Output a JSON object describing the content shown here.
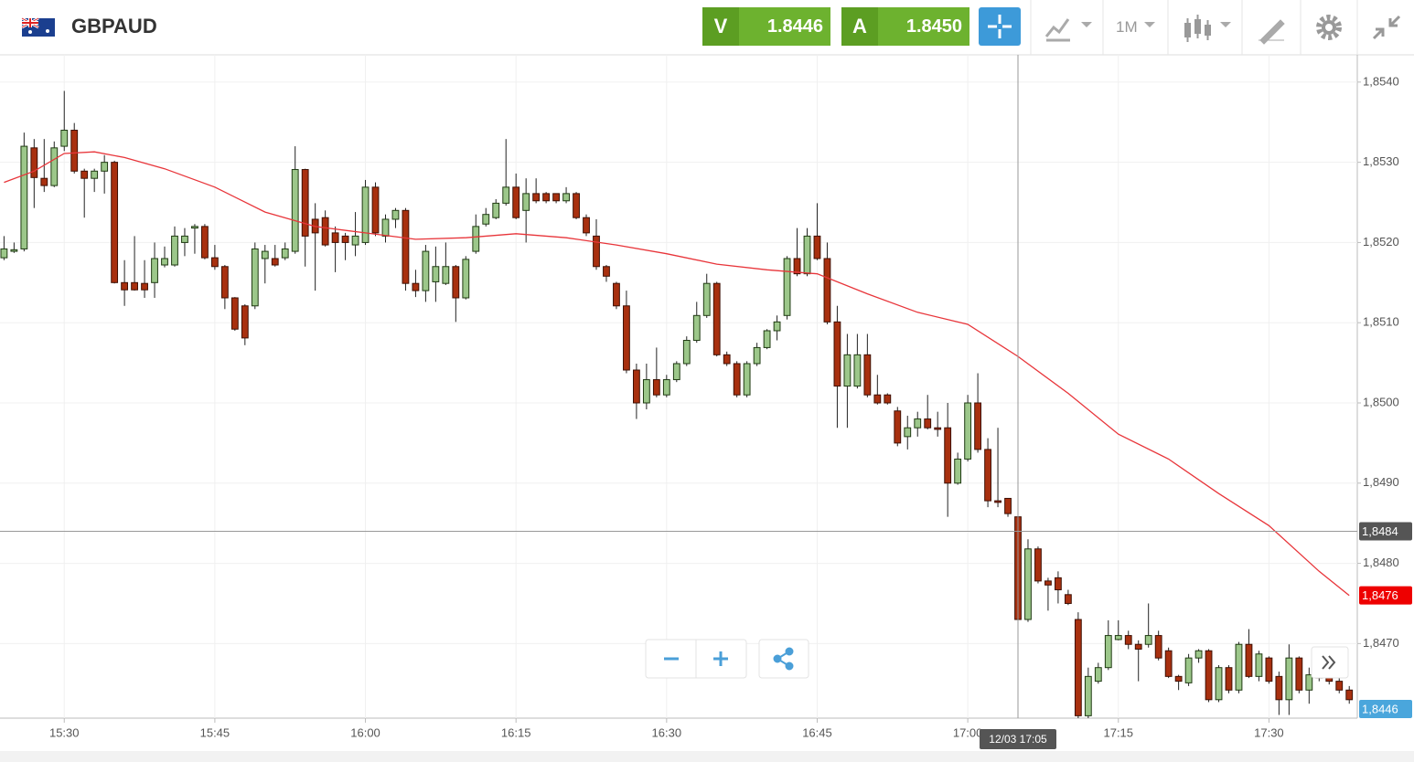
{
  "header": {
    "symbol": "GBPAUD",
    "sell": {
      "label": "V",
      "value": "1.8446"
    },
    "buy": {
      "label": "A",
      "value": "1.8450"
    },
    "timeframe": "1M"
  },
  "chart_data": {
    "type": "candlestick",
    "x": [
      924,
      925,
      926,
      927,
      928,
      929,
      930,
      931,
      932,
      933,
      934,
      935,
      936,
      937,
      938,
      939,
      940,
      941,
      942,
      943,
      944,
      945,
      946,
      947,
      948,
      949,
      950,
      951,
      952,
      953,
      954,
      955,
      956,
      957,
      958,
      959,
      960,
      961,
      962,
      963,
      964,
      965,
      966,
      967,
      968,
      969,
      970,
      971,
      972,
      973,
      974,
      975,
      976,
      977,
      978,
      979,
      980,
      981,
      982,
      983,
      984,
      985,
      986,
      987,
      988,
      989,
      990,
      991,
      992,
      993,
      994,
      995,
      996,
      997,
      998,
      999,
      1000,
      1001,
      1002,
      1003,
      1004,
      1005,
      1006,
      1007,
      1008,
      1009,
      1010,
      1011,
      1012,
      1013,
      1014,
      1015,
      1016,
      1017,
      1018,
      1019,
      1020,
      1021,
      1022,
      1023,
      1024,
      1025,
      1026,
      1027,
      1028,
      1029,
      1030,
      1031,
      1032,
      1033,
      1034,
      1035,
      1036,
      1037,
      1038,
      1039,
      1040,
      1041,
      1042,
      1043,
      1044,
      1045,
      1046,
      1047,
      1048,
      1049,
      1050,
      1051,
      1052,
      1053,
      1054,
      1055,
      1056,
      1057,
      1058
    ],
    "open": [
      1.85181,
      1.85189,
      1.85192,
      1.85318,
      1.8528,
      1.85271,
      1.8532,
      1.8534,
      1.85289,
      1.8528,
      1.85289,
      1.853,
      1.8515,
      1.8515,
      1.85149,
      1.8515,
      1.85172,
      1.85172,
      1.852,
      1.85218,
      1.8522,
      1.85181,
      1.8517,
      1.85131,
      1.85121,
      1.85121,
      1.8518,
      1.8518,
      1.85181,
      1.85189,
      1.85291,
      1.85229,
      1.85231,
      1.85212,
      1.85208,
      1.85197,
      1.852,
      1.85269,
      1.85208,
      1.85229,
      1.8524,
      1.85149,
      1.8514,
      1.85151,
      1.85149,
      1.8517,
      1.85131,
      1.85189,
      1.85223,
      1.85231,
      1.85249,
      1.85269,
      1.8524,
      1.85261,
      1.85261,
      1.85261,
      1.85252,
      1.85261,
      1.85231,
      1.85208,
      1.8517,
      1.85149,
      1.85121,
      1.85041,
      1.85,
      1.85029,
      1.8501,
      1.85029,
      1.85049,
      1.85078,
      1.85109,
      1.85149,
      1.8506,
      1.85049,
      1.8501,
      1.85049,
      1.85069,
      1.8509,
      1.85109,
      1.8518,
      1.85161,
      1.85208,
      1.8518,
      1.85101,
      1.85021,
      1.85021,
      1.8506,
      1.8501,
      1.8501,
      1.8499,
      1.84958,
      1.84969,
      1.8498,
      1.84969,
      1.84969,
      1.849,
      1.8493,
      1.85,
      1.84942,
      1.84878,
      1.84881,
      1.84858,
      1.8473,
      1.84818,
      1.84778,
      1.84782,
      1.84761,
      1.8473,
      1.8461,
      1.84653,
      1.8467,
      1.84705,
      1.8471,
      1.84699,
      1.84699,
      1.8471,
      1.84691,
      1.84659,
      1.84651,
      1.84682,
      1.84691,
      1.8463,
      1.8467,
      1.84642,
      1.84699,
      1.84659,
      1.84682,
      1.84659,
      1.8463,
      1.84682,
      1.84642,
      1.84659,
      1.84659,
      1.84653,
      1.84642
    ],
    "high": [
      1.85208,
      1.852,
      1.85337,
      1.85329,
      1.85329,
      1.85326,
      1.85389,
      1.85349,
      1.85292,
      1.85292,
      1.85309,
      1.85302,
      1.85178,
      1.85208,
      1.85178,
      1.852,
      1.85195,
      1.8522,
      1.85218,
      1.85223,
      1.85223,
      1.85197,
      1.85172,
      1.85132,
      1.85123,
      1.852,
      1.85197,
      1.85197,
      1.852,
      1.8532,
      1.85292,
      1.85249,
      1.8524,
      1.8522,
      1.85212,
      1.85238,
      1.85278,
      1.85275,
      1.85235,
      1.85243,
      1.85243,
      1.85166,
      1.85197,
      1.85195,
      1.852,
      1.85172,
      1.85183,
      1.85235,
      1.85243,
      1.85254,
      1.85329,
      1.85286,
      1.8528,
      1.8528,
      1.85263,
      1.85261,
      1.85269,
      1.85263,
      1.85235,
      1.85229,
      1.85172,
      1.85151,
      1.8514,
      1.85049,
      1.85049,
      1.85069,
      1.85035,
      1.85052,
      1.85083,
      1.85126,
      1.85161,
      1.85151,
      1.85064,
      1.85052,
      1.85052,
      1.85075,
      1.85092,
      1.85109,
      1.85183,
      1.85218,
      1.85218,
      1.85249,
      1.852,
      1.85121,
      1.85086,
      1.85086,
      1.85086,
      1.85035,
      1.85012,
      1.84995,
      1.84984,
      1.84989,
      1.8501,
      1.84989,
      1.85,
      1.84938,
      1.8501,
      1.85037,
      1.84956,
      1.84969,
      1.84881,
      1.84864,
      1.8483,
      1.84821,
      1.84782,
      1.8479,
      1.84767,
      1.84739,
      1.8467,
      1.84676,
      1.84729,
      1.84729,
      1.84716,
      1.84704,
      1.8475,
      1.84716,
      1.84695,
      1.84661,
      1.84687,
      1.84693,
      1.84693,
      1.84673,
      1.84673,
      1.84702,
      1.84718,
      1.84691,
      1.84684,
      1.84665,
      1.84699,
      1.84684,
      1.8467,
      1.84665,
      1.84665,
      1.84659,
      1.84647
    ],
    "low": [
      1.85178,
      1.85187,
      1.85189,
      1.85243,
      1.85263,
      1.85269,
      1.85314,
      1.85286,
      1.85231,
      1.85263,
      1.85261,
      1.85149,
      1.85121,
      1.8514,
      1.85131,
      1.85131,
      1.85169,
      1.8517,
      1.85183,
      1.85186,
      1.85179,
      1.85166,
      1.85117,
      1.8509,
      1.85072,
      1.85117,
      1.85149,
      1.8517,
      1.85178,
      1.85186,
      1.8517,
      1.8514,
      1.85195,
      1.85163,
      1.85178,
      1.85183,
      1.85197,
      1.85208,
      1.852,
      1.85218,
      1.8514,
      1.85132,
      1.85126,
      1.85126,
      1.85147,
      1.85101,
      1.85129,
      1.85186,
      1.8522,
      1.85229,
      1.85246,
      1.85229,
      1.852,
      1.85249,
      1.85249,
      1.85249,
      1.85249,
      1.85229,
      1.85208,
      1.85166,
      1.85151,
      1.85117,
      1.85037,
      1.8498,
      1.84992,
      1.85007,
      1.85007,
      1.85026,
      1.85046,
      1.85075,
      1.85106,
      1.85058,
      1.85046,
      1.85007,
      1.85007,
      1.85046,
      1.85067,
      1.85078,
      1.85104,
      1.85158,
      1.85158,
      1.85178,
      1.85098,
      1.84969,
      1.84969,
      1.85018,
      1.85007,
      1.84998,
      1.84998,
      1.84946,
      1.84942,
      1.84958,
      1.84967,
      1.84958,
      1.84858,
      1.84898,
      1.84927,
      1.84938,
      1.8487,
      1.8487,
      1.84858,
      1.84727,
      1.84727,
      1.84775,
      1.84741,
      1.8475,
      1.84748,
      1.84606,
      1.84606,
      1.8465,
      1.84667,
      1.84704,
      1.84693,
      1.84653,
      1.84695,
      1.84679,
      1.84657,
      1.84642,
      1.84647,
      1.84676,
      1.84627,
      1.84627,
      1.84638,
      1.84638,
      1.84657,
      1.84653,
      1.8465,
      1.84611,
      1.84611,
      1.84638,
      1.84625,
      1.84653,
      1.84649,
      1.84638,
      1.84625
    ],
    "close": [
      1.85192,
      1.85191,
      1.8532,
      1.85281,
      1.85271,
      1.85318,
      1.8534,
      1.85289,
      1.8528,
      1.85289,
      1.853,
      1.8515,
      1.85141,
      1.85141,
      1.85141,
      1.8518,
      1.8518,
      1.85208,
      1.85208,
      1.8522,
      1.85181,
      1.8517,
      1.85131,
      1.85092,
      1.85081,
      1.85192,
      1.85189,
      1.85172,
      1.85192,
      1.85291,
      1.85208,
      1.85212,
      1.85197,
      1.852,
      1.852,
      1.85208,
      1.85269,
      1.85212,
      1.85229,
      1.8524,
      1.85149,
      1.8514,
      1.85189,
      1.8517,
      1.8517,
      1.85131,
      1.85179,
      1.8522,
      1.85235,
      1.85249,
      1.85269,
      1.85231,
      1.85261,
      1.85252,
      1.85252,
      1.85252,
      1.85261,
      1.85231,
      1.85212,
      1.8517,
      1.85158,
      1.85121,
      1.85041,
      1.85,
      1.85029,
      1.8501,
      1.85029,
      1.85049,
      1.85078,
      1.85109,
      1.85149,
      1.8506,
      1.85049,
      1.8501,
      1.85049,
      1.85069,
      1.8509,
      1.85101,
      1.8518,
      1.85161,
      1.85208,
      1.8518,
      1.85101,
      1.85021,
      1.8506,
      1.8506,
      1.8501,
      1.85,
      1.85,
      1.8495,
      1.84969,
      1.8498,
      1.84969,
      1.84967,
      1.849,
      1.8493,
      1.85,
      1.84942,
      1.84878,
      1.84876,
      1.84862,
      1.8473,
      1.84818,
      1.84778,
      1.84773,
      1.84767,
      1.8475,
      1.8461,
      1.84659,
      1.8467,
      1.8471,
      1.8471,
      1.84699,
      1.84693,
      1.8471,
      1.84682,
      1.84659,
      1.84653,
      1.84682,
      1.84691,
      1.8463,
      1.8467,
      1.84642,
      1.84699,
      1.84659,
      1.84687,
      1.84653,
      1.8463,
      1.84682,
      1.84642,
      1.84661,
      1.84657,
      1.84653,
      1.84642,
      1.8463
    ],
    "up_color": "#9cc78a",
    "down_color": "#a8300f",
    "ma": {
      "color": "#e8353a",
      "x": [
        924,
        927,
        930,
        933,
        936,
        940,
        945,
        950,
        955,
        960,
        965,
        970,
        975,
        980,
        985,
        990,
        995,
        1000,
        1005,
        1010,
        1015,
        1020,
        1025,
        1030,
        1035,
        1040,
        1045,
        1050,
        1055,
        1058
      ],
      "values": [
        1.85275,
        1.85289,
        1.85311,
        1.85313,
        1.85306,
        1.85292,
        1.85269,
        1.85238,
        1.8522,
        1.85212,
        1.85204,
        1.85206,
        1.85211,
        1.85206,
        1.85197,
        1.85186,
        1.85173,
        1.85166,
        1.85161,
        1.85136,
        1.85113,
        1.85098,
        1.85058,
        1.85012,
        1.84961,
        1.8493,
        1.84887,
        1.84847,
        1.8479,
        1.8476
      ],
      "value_label": "1,8476"
    },
    "last_price": {
      "value": 1.8446,
      "label": "1,8446",
      "color": "#4aa6dc"
    },
    "crosshair": {
      "price": {
        "value": 1.8484,
        "label": "1,8484"
      },
      "time": {
        "value": 1025,
        "label": "12/03 17:05"
      }
    },
    "xlim": [
      923.6,
      1058.8
    ],
    "xticks": [
      {
        "value": 930,
        "label": "15:30"
      },
      {
        "value": 945,
        "label": "15:45"
      },
      {
        "value": 960,
        "label": "16:00"
      },
      {
        "value": 975,
        "label": "16:15"
      },
      {
        "value": 990,
        "label": "16:30"
      },
      {
        "value": 1005,
        "label": "16:45"
      },
      {
        "value": 1020,
        "label": "17:00"
      },
      {
        "value": 1035,
        "label": "17:15"
      },
      {
        "value": 1050,
        "label": "17:30"
      }
    ],
    "ylim": [
      1.84607,
      1.85434
    ],
    "yticks": [
      {
        "value": 1.854,
        "label": "1,8540"
      },
      {
        "value": 1.853,
        "label": "1,8530"
      },
      {
        "value": 1.852,
        "label": "1,8520"
      },
      {
        "value": 1.851,
        "label": "1,8510"
      },
      {
        "value": 1.85,
        "label": "1,8500"
      },
      {
        "value": 1.849,
        "label": "1,8490"
      },
      {
        "value": 1.848,
        "label": "1,8480"
      },
      {
        "value": 1.847,
        "label": "1,8470"
      }
    ],
    "grid": true
  }
}
